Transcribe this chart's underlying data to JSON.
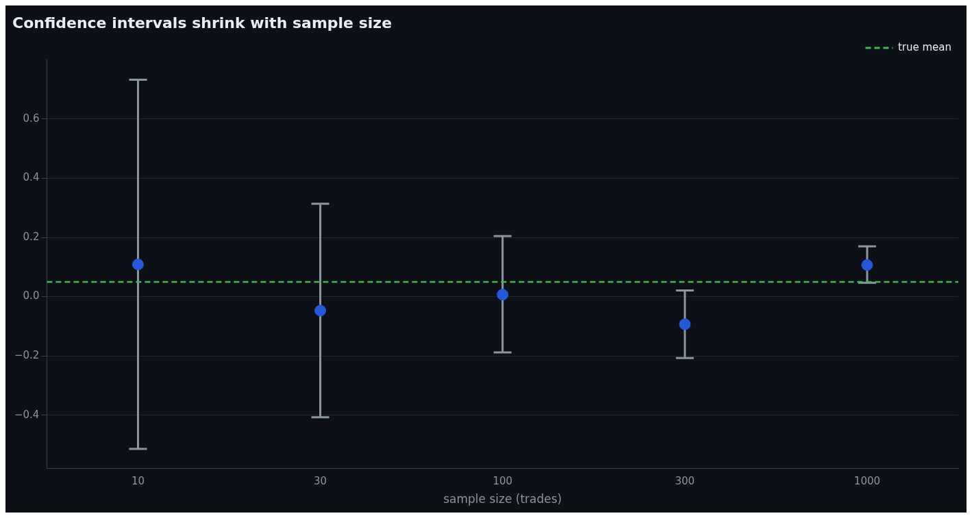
{
  "chart_data": {
    "type": "scatter",
    "title": "Confidence intervals shrink with sample size",
    "xlabel": "sample size (trades)",
    "categories": [
      "10",
      "30",
      "100",
      "300",
      "1000"
    ],
    "series": [
      {
        "color": "#2458d6",
        "values": [
          0.109,
          -0.047,
          0.007,
          -0.093,
          0.107
        ],
        "errors": [
          [
            -0.514,
            0.733
          ],
          [
            -0.407,
            0.314
          ],
          [
            -0.188,
            0.205
          ],
          [
            -0.207,
            0.021
          ],
          [
            0.047,
            0.17
          ]
        ]
      }
    ],
    "ylim": [
      -0.58,
      0.8
    ],
    "yticks": [
      {
        "value": -0.4,
        "label": "−0.4"
      },
      {
        "value": -0.2,
        "label": "−0.2"
      },
      {
        "value": 0,
        "label": "0.0"
      },
      {
        "value": 0.2,
        "label": "0.2"
      },
      {
        "value": 0.4,
        "label": "0.4"
      },
      {
        "value": 0.6,
        "label": "0.6"
      }
    ],
    "ref_lines": [
      {
        "axis": "y",
        "value": 0.05,
        "label": "true mean",
        "color": "#3fb950",
        "line_style": "dashed"
      }
    ],
    "grid": "y",
    "legend": "top right",
    "marker": "circle"
  }
}
